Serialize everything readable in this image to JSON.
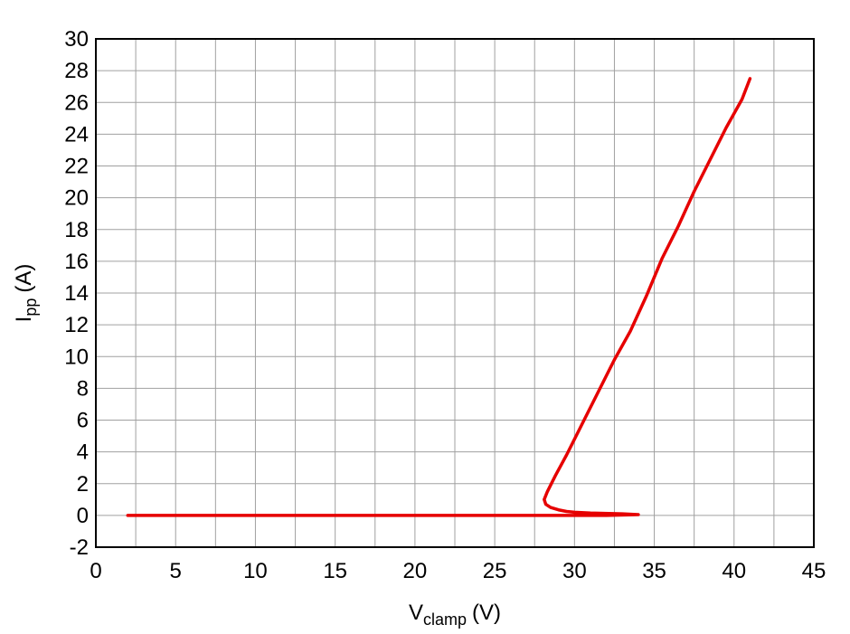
{
  "chart_data": {
    "type": "line",
    "xlabel": [
      "V",
      "clamp",
      "(V)"
    ],
    "ylabel": [
      "I",
      "pp",
      "(A)"
    ],
    "xlim": [
      0,
      45
    ],
    "xticks": [
      0,
      5,
      10,
      15,
      20,
      25,
      30,
      35,
      40,
      45
    ],
    "x_minor_grid": [
      2.5,
      7.5,
      12.5,
      17.5,
      22.5,
      27.5,
      32.5,
      37.5,
      42.5
    ],
    "ylim": [
      -2,
      30
    ],
    "yticks": [
      -2,
      0,
      2,
      4,
      6,
      8,
      10,
      12,
      14,
      16,
      18,
      20,
      22,
      24,
      26,
      28,
      30
    ],
    "grid": true,
    "series": [
      {
        "color": "#e60000",
        "x": [
          2,
          10,
          20,
          28,
          30,
          32,
          34,
          33,
          31,
          30,
          29.5,
          29,
          28.5,
          28.2,
          28.1,
          28.3,
          28.8,
          29.5,
          30.5,
          31.5,
          32.5,
          33.5,
          34.5,
          35.5,
          36.5,
          37.5,
          38.5,
          39.5,
          40.5,
          41
        ],
        "values": [
          0,
          0,
          0,
          0,
          0,
          0,
          0.05,
          0.1,
          0.15,
          0.2,
          0.25,
          0.35,
          0.5,
          0.7,
          1.0,
          1.5,
          2.5,
          3.8,
          5.8,
          7.8,
          9.8,
          11.6,
          13.8,
          16.2,
          18.2,
          20.4,
          22.4,
          24.4,
          26.2,
          27.5
        ]
      }
    ]
  }
}
